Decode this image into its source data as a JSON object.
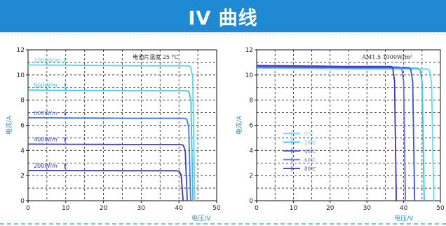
{
  "banner": {
    "title": "IV 曲线"
  },
  "chart_data": [
    {
      "type": "line",
      "title": "",
      "xlabel": "电压/V",
      "ylabel": "电流/A",
      "xlim": [
        0,
        50
      ],
      "ylim": [
        0,
        12
      ],
      "xticks": [
        0,
        10,
        20,
        30,
        40,
        50
      ],
      "yticks": [
        0,
        2,
        4,
        6,
        8,
        10,
        12
      ],
      "grid": true,
      "annotation": "电池片温度 25 °C",
      "series": [
        {
          "name": "1000W/m",
          "color": "#5fd6e8",
          "isc": 10.8,
          "voc": 44.2,
          "knee": 0.975,
          "x": [
            0,
            10,
            20,
            30,
            35,
            38,
            40,
            42,
            43,
            43.8,
            44.2
          ],
          "y": [
            10.8,
            10.8,
            10.8,
            10.78,
            10.7,
            10.4,
            9.6,
            7.2,
            4.8,
            2.0,
            0
          ]
        },
        {
          "name": "800W/m",
          "color": "#3cc2e6",
          "isc": 8.8,
          "voc": 43.7,
          "knee": 0.975,
          "x": [
            0,
            10,
            20,
            30,
            35,
            38,
            40,
            42,
            43,
            43.7
          ],
          "y": [
            8.8,
            8.8,
            8.8,
            8.78,
            8.7,
            8.45,
            7.8,
            5.6,
            3.4,
            0
          ]
        },
        {
          "name": "600W/m",
          "color": "#4a74e6",
          "isc": 6.6,
          "voc": 43.1,
          "knee": 0.972,
          "x": [
            0,
            10,
            20,
            30,
            35,
            38,
            40,
            42,
            43.1
          ],
          "y": [
            6.6,
            6.6,
            6.6,
            6.58,
            6.5,
            6.3,
            5.7,
            3.5,
            0
          ]
        },
        {
          "name": "400W/m",
          "color": "#3a3fd6",
          "isc": 4.5,
          "voc": 42.2,
          "knee": 0.968,
          "x": [
            0,
            10,
            20,
            30,
            35,
            38,
            40,
            41.5,
            42.2
          ],
          "y": [
            4.5,
            4.5,
            4.5,
            4.48,
            4.42,
            4.25,
            3.7,
            2.0,
            0
          ]
        },
        {
          "name": "200W/m",
          "color": "#3a30b8",
          "isc": 2.4,
          "voc": 41.1,
          "knee": 0.962,
          "x": [
            0,
            10,
            20,
            30,
            35,
            38,
            40,
            41.1
          ],
          "y": [
            2.4,
            2.4,
            2.4,
            2.39,
            2.35,
            2.2,
            1.6,
            0
          ]
        }
      ]
    },
    {
      "type": "line",
      "title": "",
      "xlabel": "电压/V",
      "ylabel": "电流/A",
      "xlim": [
        0,
        50
      ],
      "ylim": [
        0,
        12
      ],
      "xticks": [
        0,
        10,
        20,
        30,
        40,
        50
      ],
      "yticks": [
        0,
        2,
        4,
        6,
        8,
        10,
        12
      ],
      "grid": true,
      "annotation": "AM1.5 1000W/m²",
      "series": [
        {
          "name": "0℃",
          "color": "#5fe0ee",
          "isc": 10.55,
          "voc": 48.2,
          "knee": 0.97,
          "x": [
            0,
            10,
            20,
            30,
            38,
            42,
            45,
            47,
            48.2
          ],
          "y": [
            10.55,
            10.55,
            10.55,
            10.54,
            10.45,
            10.0,
            8.2,
            4.5,
            0
          ]
        },
        {
          "name": "20℃",
          "color": "#38bfe6",
          "isc": 10.6,
          "voc": 45.6,
          "knee": 0.97,
          "x": [
            0,
            10,
            20,
            30,
            36,
            40,
            43,
            44.8,
            45.6
          ],
          "y": [
            10.6,
            10.6,
            10.6,
            10.58,
            10.45,
            9.9,
            7.9,
            4.0,
            0
          ]
        },
        {
          "name": "40℃",
          "color": "#3a52dc",
          "isc": 10.65,
          "voc": 43.0,
          "knee": 0.97,
          "x": [
            0,
            10,
            20,
            30,
            34,
            38,
            41,
            42.4,
            43.0
          ],
          "y": [
            10.65,
            10.65,
            10.65,
            10.62,
            10.48,
            9.9,
            7.5,
            3.6,
            0
          ]
        },
        {
          "name": "60℃",
          "color": "#6a6ae6",
          "isc": 10.7,
          "voc": 40.5,
          "knee": 0.97,
          "x": [
            0,
            10,
            20,
            28,
            32,
            36,
            39,
            40.0,
            40.5
          ],
          "y": [
            10.7,
            10.7,
            10.7,
            10.68,
            10.5,
            9.7,
            6.8,
            3.2,
            0
          ]
        },
        {
          "name": "80℃",
          "color": "#4a2fb8",
          "isc": 10.75,
          "voc": 38.0,
          "knee": 0.97,
          "x": [
            0,
            10,
            20,
            26,
            30,
            34,
            36.5,
            37.6,
            38.0
          ],
          "y": [
            10.75,
            10.75,
            10.75,
            10.72,
            10.55,
            9.6,
            6.6,
            3.0,
            0
          ]
        }
      ]
    }
  ]
}
